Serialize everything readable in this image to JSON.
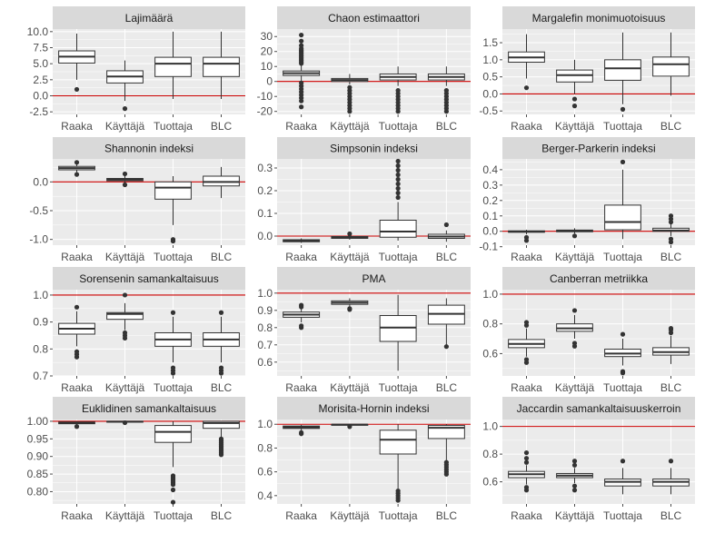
{
  "chart_data": {
    "type": "boxplot",
    "layout": "facet-grid-4x3",
    "categories": [
      "Raaka",
      "Käyttäjä",
      "Tuottaja",
      "BLC"
    ],
    "panels": [
      {
        "title": "Lajimäärä",
        "ylim": [
          -2.9,
          10.4
        ],
        "yticks": [
          -2.5,
          0.0,
          2.5,
          5.0,
          7.5,
          10.0
        ],
        "ytick_labels": [
          "-2.5",
          "0.0",
          "2.5",
          "5.0",
          "7.5",
          "10.0"
        ],
        "refline": 0,
        "boxes": [
          {
            "q1": 5.1,
            "median": 6.1,
            "q3": 7.0,
            "whislo": 2.5,
            "whishi": 9.7,
            "outliers": [
              1.0
            ]
          },
          {
            "q1": 2.0,
            "median": 3.0,
            "q3": 3.9,
            "whislo": -0.8,
            "whishi": 5.5,
            "outliers": [
              -2.0
            ]
          },
          {
            "q1": 3.0,
            "median": 5.0,
            "q3": 6.0,
            "whislo": -0.5,
            "whishi": 10.0,
            "outliers": []
          },
          {
            "q1": 3.0,
            "median": 5.0,
            "q3": 6.0,
            "whislo": -0.5,
            "whishi": 10.0,
            "outliers": []
          }
        ]
      },
      {
        "title": "Chaon estimaattori",
        "ylim": [
          -22,
          35
        ],
        "yticks": [
          -20,
          -10,
          0,
          10,
          20,
          30
        ],
        "ytick_labels": [
          "-20",
          "-10",
          "0",
          "10",
          "20",
          "30"
        ],
        "refline": 0,
        "boxes": [
          {
            "q1": 4.0,
            "median": 5.5,
            "q3": 7.0,
            "whislo": 0.0,
            "whishi": 11.0,
            "outliers": [
              12,
              13,
              14,
              15,
              16,
              17,
              18,
              19,
              20,
              21,
              22,
              24,
              27,
              31,
              -1,
              -3,
              -5,
              -7,
              -9,
              -11,
              -13,
              -17
            ]
          },
          {
            "q1": 0.0,
            "median": 1.0,
            "q3": 2.0,
            "whislo": -2.0,
            "whishi": 5.0,
            "outliers": [
              -4,
              -6,
              -8,
              -10,
              -12,
              -14,
              -16,
              -18,
              -20
            ]
          },
          {
            "q1": 1.0,
            "median": 3.0,
            "q3": 5.0,
            "whislo": -3.0,
            "whishi": 10.0,
            "outliers": [
              -6,
              -8,
              -10,
              -12,
              -14,
              -16,
              -18,
              -20
            ]
          },
          {
            "q1": 1.0,
            "median": 3.0,
            "q3": 5.0,
            "whislo": -3.0,
            "whishi": 10.0,
            "outliers": [
              -6,
              -8,
              -10,
              -12,
              -14,
              -16,
              -18,
              -20
            ]
          }
        ]
      },
      {
        "title": "Margalefin monimuotoisuus",
        "ylim": [
          -0.6,
          1.9
        ],
        "yticks": [
          -0.5,
          0.0,
          0.5,
          1.0,
          1.5
        ],
        "ytick_labels": [
          "-0.5",
          "0.0",
          "0.5",
          "1.0",
          "1.5"
        ],
        "refline": 0,
        "boxes": [
          {
            "q1": 0.93,
            "median": 1.07,
            "q3": 1.23,
            "whislo": 0.45,
            "whishi": 1.75,
            "outliers": [
              0.18
            ]
          },
          {
            "q1": 0.35,
            "median": 0.55,
            "q3": 0.7,
            "whislo": 0.0,
            "whishi": 1.0,
            "outliers": [
              -0.15,
              -0.35
            ]
          },
          {
            "q1": 0.4,
            "median": 0.75,
            "q3": 1.0,
            "whislo": -0.3,
            "whishi": 1.8,
            "outliers": [
              -0.45
            ]
          },
          {
            "q1": 0.52,
            "median": 0.87,
            "q3": 1.08,
            "whislo": -0.05,
            "whishi": 1.8,
            "outliers": []
          }
        ]
      },
      {
        "title": "Shannonin indeksi",
        "ylim": [
          -1.1,
          0.4
        ],
        "yticks": [
          -1.0,
          -0.5,
          0.0
        ],
        "ytick_labels": [
          "-1.0",
          "-0.5",
          "0.0"
        ],
        "refline": 0,
        "boxes": [
          {
            "q1": 0.21,
            "median": 0.24,
            "q3": 0.27,
            "whislo": 0.17,
            "whishi": 0.31,
            "outliers": [
              0.34,
              0.13
            ]
          },
          {
            "q1": 0.02,
            "median": 0.04,
            "q3": 0.06,
            "whislo": -0.02,
            "whishi": 0.1,
            "outliers": [
              0.14,
              -0.05
            ]
          },
          {
            "q1": -0.3,
            "median": -0.1,
            "q3": 0.0,
            "whislo": -0.75,
            "whishi": 0.1,
            "outliers": [
              -1.0,
              -1.03
            ]
          },
          {
            "q1": -0.07,
            "median": 0.0,
            "q3": 0.1,
            "whislo": -0.28,
            "whishi": 0.26,
            "outliers": []
          }
        ]
      },
      {
        "title": "Simpsonin indeksi",
        "ylim": [
          -0.04,
          0.34
        ],
        "yticks": [
          0.0,
          0.1,
          0.2,
          0.3
        ],
        "ytick_labels": [
          "0.0",
          "0.1",
          "0.2",
          "0.3"
        ],
        "refline": 0,
        "boxes": [
          {
            "q1": -0.025,
            "median": -0.02,
            "q3": -0.016,
            "whislo": -0.03,
            "whishi": -0.01,
            "outliers": []
          },
          {
            "q1": -0.01,
            "median": -0.006,
            "q3": -0.002,
            "whislo": -0.016,
            "whishi": 0.005,
            "outliers": [
              0.01
            ]
          },
          {
            "q1": -0.005,
            "median": 0.02,
            "q3": 0.07,
            "whislo": -0.02,
            "whishi": 0.15,
            "outliers": [
              0.17,
              0.19,
              0.21,
              0.23,
              0.25,
              0.27,
              0.29,
              0.31,
              0.33
            ]
          },
          {
            "q1": -0.01,
            "median": -0.002,
            "q3": 0.008,
            "whislo": -0.025,
            "whishi": 0.025,
            "outliers": [
              0.05
            ]
          }
        ]
      },
      {
        "title": "Berger-Parkerin indeksi",
        "ylim": [
          -0.09,
          0.47
        ],
        "yticks": [
          -0.1,
          0.0,
          0.1,
          0.2,
          0.3,
          0.4
        ],
        "ytick_labels": [
          "-0.1",
          "0.0",
          "0.1",
          "0.2",
          "0.3",
          "0.4"
        ],
        "refline": 0,
        "boxes": [
          {
            "q1": -0.006,
            "median": -0.002,
            "q3": 0.003,
            "whislo": -0.02,
            "whishi": 0.01,
            "outliers": [
              -0.04,
              -0.06
            ]
          },
          {
            "q1": -0.003,
            "median": 0.002,
            "q3": 0.008,
            "whislo": -0.015,
            "whishi": 0.02,
            "outliers": [
              -0.03
            ]
          },
          {
            "q1": 0.01,
            "median": 0.06,
            "q3": 0.17,
            "whislo": -0.05,
            "whishi": 0.4,
            "outliers": [
              0.45
            ]
          },
          {
            "q1": 0.0,
            "median": 0.005,
            "q3": 0.02,
            "whislo": -0.03,
            "whishi": 0.05,
            "outliers": [
              0.06,
              0.08,
              0.1,
              -0.05,
              -0.07
            ]
          }
        ]
      },
      {
        "title": "Sorensenin samankaltaisuus",
        "ylim": [
          0.7,
          1.02
        ],
        "yticks": [
          0.7,
          0.8,
          0.9,
          1.0
        ],
        "ytick_labels": [
          "0.7",
          "0.8",
          "0.9",
          "1.0"
        ],
        "refline": 1,
        "boxes": [
          {
            "q1": 0.855,
            "median": 0.875,
            "q3": 0.895,
            "whislo": 0.81,
            "whishi": 0.94,
            "outliers": [
              0.955,
              0.79,
              0.78,
              0.77
            ]
          },
          {
            "q1": 0.91,
            "median": 0.93,
            "q3": 0.935,
            "whislo": 0.87,
            "whishi": 0.97,
            "outliers": [
              1.0,
              0.86,
              0.85,
              0.84
            ]
          },
          {
            "q1": 0.81,
            "median": 0.835,
            "q3": 0.86,
            "whislo": 0.75,
            "whishi": 0.92,
            "outliers": [
              0.935,
              0.73,
              0.72,
              0.71
            ]
          },
          {
            "q1": 0.81,
            "median": 0.835,
            "q3": 0.86,
            "whislo": 0.75,
            "whishi": 0.92,
            "outliers": [
              0.935,
              0.73,
              0.72,
              0.71
            ]
          }
        ]
      },
      {
        "title": "PMA",
        "ylim": [
          0.52,
          1.02
        ],
        "yticks": [
          0.6,
          0.7,
          0.8,
          0.9,
          1.0
        ],
        "ytick_labels": [
          "0.6",
          "0.7",
          "0.8",
          "0.9",
          "1.0"
        ],
        "refline": 1,
        "boxes": [
          {
            "q1": 0.86,
            "median": 0.875,
            "q3": 0.89,
            "whislo": 0.83,
            "whishi": 0.91,
            "outliers": [
              0.93,
              0.92,
              0.81,
              0.8
            ]
          },
          {
            "q1": 0.935,
            "median": 0.945,
            "q3": 0.955,
            "whislo": 0.915,
            "whishi": 0.97,
            "outliers": [
              0.91,
              0.905
            ]
          },
          {
            "q1": 0.72,
            "median": 0.8,
            "q3": 0.87,
            "whislo": 0.55,
            "whishi": 0.99,
            "outliers": []
          },
          {
            "q1": 0.82,
            "median": 0.88,
            "q3": 0.93,
            "whislo": 0.7,
            "whishi": 0.97,
            "outliers": [
              0.69
            ]
          }
        ]
      },
      {
        "title": "Canberran metriikka",
        "ylim": [
          0.45,
          1.03
        ],
        "yticks": [
          0.6,
          0.8,
          1.0
        ],
        "ytick_labels": [
          "0.6",
          "0.8",
          "1.0"
        ],
        "refline": 1,
        "boxes": [
          {
            "q1": 0.64,
            "median": 0.665,
            "q3": 0.695,
            "whislo": 0.58,
            "whishi": 0.77,
            "outliers": [
              0.79,
              0.81,
              0.56,
              0.54
            ]
          },
          {
            "q1": 0.75,
            "median": 0.77,
            "q3": 0.8,
            "whislo": 0.7,
            "whishi": 0.86,
            "outliers": [
              0.89,
              0.67,
              0.65
            ]
          },
          {
            "q1": 0.58,
            "median": 0.6,
            "q3": 0.63,
            "whislo": 0.52,
            "whishi": 0.7,
            "outliers": [
              0.73,
              0.48,
              0.47
            ]
          },
          {
            "q1": 0.59,
            "median": 0.61,
            "q3": 0.64,
            "whislo": 0.53,
            "whishi": 0.72,
            "outliers": [
              0.74,
              0.76,
              0.77
            ]
          }
        ]
      },
      {
        "title": "Euklidinen samankaltaisuus",
        "ylim": [
          0.765,
          1.005
        ],
        "yticks": [
          0.8,
          0.85,
          0.9,
          0.95,
          1.0
        ],
        "ytick_labels": [
          "0.80",
          "0.85",
          "0.90",
          "0.95",
          "1.00"
        ],
        "refline": 1,
        "boxes": [
          {
            "q1": 0.993,
            "median": 0.996,
            "q3": 0.998,
            "whislo": 0.99,
            "whishi": 1.0,
            "outliers": [
              0.985
            ]
          },
          {
            "q1": 0.998,
            "median": 0.999,
            "q3": 1.0,
            "whislo": 0.997,
            "whishi": 1.0,
            "outliers": [
              0.996
            ]
          },
          {
            "q1": 0.94,
            "median": 0.97,
            "q3": 0.988,
            "whislo": 0.87,
            "whishi": 1.0,
            "outliers": [
              0.845,
              0.84,
              0.835,
              0.83,
              0.825,
              0.82,
              0.805,
              0.77
            ]
          },
          {
            "q1": 0.98,
            "median": 0.995,
            "q3": 1.0,
            "whislo": 0.955,
            "whishi": 1.0,
            "outliers": [
              0.95,
              0.945,
              0.94,
              0.935,
              0.93,
              0.925,
              0.92,
              0.915,
              0.91,
              0.905
            ]
          }
        ]
      },
      {
        "title": "Morisita-Hornin indeksi",
        "ylim": [
          0.33,
          1.04
        ],
        "yticks": [
          0.4,
          0.6,
          0.8,
          1.0
        ],
        "ytick_labels": [
          "0.4",
          "0.6",
          "0.8",
          "1.0"
        ],
        "refline": 1,
        "boxes": [
          {
            "q1": 0.965,
            "median": 0.975,
            "q3": 0.985,
            "whislo": 0.94,
            "whishi": 0.995,
            "outliers": [
              0.93,
              0.92
            ]
          },
          {
            "q1": 0.995,
            "median": 0.997,
            "q3": 0.999,
            "whislo": 0.99,
            "whishi": 1.0,
            "outliers": [
              0.98
            ]
          },
          {
            "q1": 0.75,
            "median": 0.87,
            "q3": 0.95,
            "whislo": 0.46,
            "whishi": 1.0,
            "outliers": [
              0.44,
              0.42,
              0.4,
              0.38,
              0.36
            ]
          },
          {
            "q1": 0.88,
            "median": 0.97,
            "q3": 0.99,
            "whislo": 0.7,
            "whishi": 1.0,
            "outliers": [
              0.68,
              0.66,
              0.64,
              0.62,
              0.6,
              0.58
            ]
          }
        ]
      },
      {
        "title": "Jaccardin samankaltaisuuskerroin",
        "ylim": [
          0.44,
          1.05
        ],
        "yticks": [
          0.6,
          0.8,
          1.0
        ],
        "ytick_labels": [
          "0.6",
          "0.8",
          "1.0"
        ],
        "refline": 1,
        "boxes": [
          {
            "q1": 0.63,
            "median": 0.655,
            "q3": 0.675,
            "whislo": 0.58,
            "whishi": 0.72,
            "outliers": [
              0.74,
              0.77,
              0.81,
              0.56,
              0.54
            ]
          },
          {
            "q1": 0.63,
            "median": 0.645,
            "q3": 0.66,
            "whislo": 0.59,
            "whishi": 0.7,
            "outliers": [
              0.72,
              0.75,
              0.57,
              0.54
            ]
          },
          {
            "q1": 0.57,
            "median": 0.6,
            "q3": 0.62,
            "whislo": 0.51,
            "whishi": 0.7,
            "outliers": [
              0.75
            ]
          },
          {
            "q1": 0.57,
            "median": 0.6,
            "q3": 0.62,
            "whislo": 0.51,
            "whishi": 0.7,
            "outliers": [
              0.75
            ]
          }
        ]
      }
    ]
  },
  "colors": {
    "panel_bg": "#ebebeb",
    "strip_bg": "#d9d9d9",
    "grid": "#ffffff",
    "refline": "#cc0000",
    "box_fill": "#ffffff",
    "box_stroke": "#333333",
    "point": "#333333",
    "tick": "#4d4d4d"
  }
}
